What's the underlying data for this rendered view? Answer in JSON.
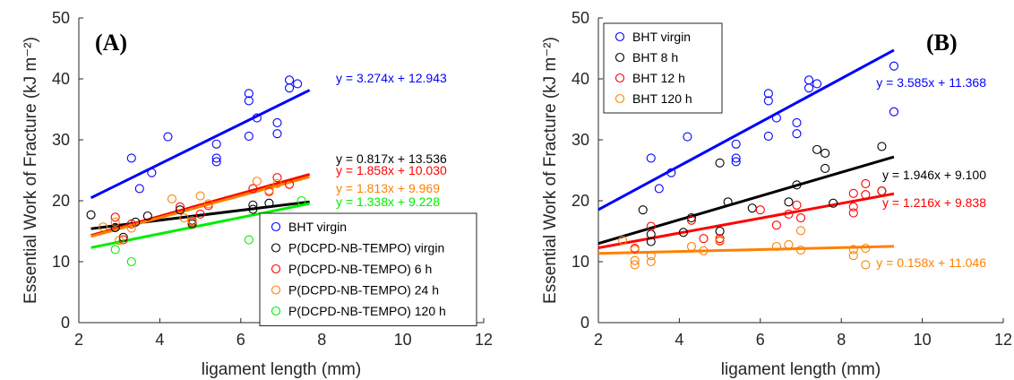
{
  "figure": {
    "colors": {
      "blue": "#0000ff",
      "black": "#000000",
      "red": "#ff0000",
      "orange": "#ff8000",
      "green": "#00ee00",
      "axis": "#262626"
    }
  },
  "chart_data": [
    {
      "type": "scatter",
      "panel_label": "(A)",
      "xlabel": "ligament length (mm)",
      "ylabel": "Essential Work of Fracture (kJ m⁻²)",
      "xlim": [
        2,
        12
      ],
      "ylim": [
        0,
        50
      ],
      "xticks": [
        2,
        4,
        6,
        8,
        10,
        12
      ],
      "yticks": [
        0,
        10,
        20,
        30,
        40,
        50
      ],
      "grid": false,
      "legend_position": "bottom-right",
      "series": [
        {
          "name": "BHT virgin",
          "color": "#0000ff",
          "points": [
            [
              3.3,
              27
            ],
            [
              3.5,
              22
            ],
            [
              3.8,
              24.6
            ],
            [
              4.2,
              30.5
            ],
            [
              5.4,
              29.3
            ],
            [
              5.4,
              27
            ],
            [
              5.4,
              26.4
            ],
            [
              6.2,
              37.6
            ],
            [
              6.2,
              36.4
            ],
            [
              6.2,
              30.6
            ],
            [
              6.4,
              33.6
            ],
            [
              6.9,
              32.8
            ],
            [
              6.9,
              31
            ],
            [
              7.2,
              39.8
            ],
            [
              7.2,
              38.5
            ],
            [
              7.4,
              39.2
            ]
          ],
          "fit": {
            "slope": 3.274,
            "intercept": 12.943,
            "x_range": [
              2.3,
              7.7
            ]
          },
          "equation": "y = 3.274x + 12.943"
        },
        {
          "name": "P(DCPD-NB-TEMPO) virgin",
          "color": "#000000",
          "points": [
            [
              2.3,
              17.7
            ],
            [
              2.9,
              15.6
            ],
            [
              3.1,
              14
            ],
            [
              3.4,
              16.5
            ],
            [
              3.7,
              17.5
            ],
            [
              4.5,
              18.5
            ],
            [
              4.8,
              16.2
            ],
            [
              4.8,
              16.8
            ],
            [
              6.3,
              19.3
            ],
            [
              6.3,
              18.6
            ],
            [
              6.7,
              19.6
            ]
          ],
          "fit": {
            "slope": 0.817,
            "intercept": 13.536,
            "x_range": [
              2.3,
              7.7
            ]
          },
          "equation": "y = 0.817x + 13.536"
        },
        {
          "name": "P(DCPD-NB-TEMPO) 6 h",
          "color": "#ff0000",
          "points": [
            [
              2.9,
              17.3
            ],
            [
              3.1,
              13.6
            ],
            [
              3.3,
              16.2
            ],
            [
              4.5,
              19
            ],
            [
              4.8,
              16.5
            ],
            [
              5,
              17.8
            ],
            [
              5.2,
              19.2
            ],
            [
              6.3,
              22
            ],
            [
              6.7,
              21.5
            ],
            [
              6.9,
              23.8
            ],
            [
              7.2,
              22.7
            ]
          ],
          "fit": {
            "slope": 1.858,
            "intercept": 10.03,
            "x_range": [
              2.3,
              7.7
            ]
          },
          "equation": "y = 1.858x + 10.030"
        },
        {
          "name": "P(DCPD-NB-TEMPO) 24 h",
          "color": "#ff8000",
          "points": [
            [
              2.6,
              15.7
            ],
            [
              2.9,
              16.5
            ],
            [
              3,
              13.5
            ],
            [
              3.3,
              15.5
            ],
            [
              4.3,
              20.3
            ],
            [
              4.6,
              17.2
            ],
            [
              4.8,
              16.7
            ],
            [
              5,
              20.8
            ],
            [
              5.2,
              19.5
            ],
            [
              6.4,
              23.2
            ],
            [
              6.7,
              21.7
            ],
            [
              6.9,
              22.8
            ]
          ],
          "fit": {
            "slope": 1.813,
            "intercept": 9.969,
            "x_range": [
              2.3,
              7.7
            ]
          },
          "equation": "y = 1.813x + 9.969"
        },
        {
          "name": "P(DCPD-NB-TEMPO) 120 h",
          "color": "#00ee00",
          "points": [
            [
              2.9,
              12
            ],
            [
              3.3,
              10
            ],
            [
              6.2,
              13.6
            ],
            [
              7.5,
              20
            ]
          ],
          "fit": {
            "slope": 1.338,
            "intercept": 9.228,
            "x_range": [
              2.3,
              7.7
            ]
          },
          "equation": "y = 1.338x + 9.228"
        }
      ]
    },
    {
      "type": "scatter",
      "panel_label": "(B)",
      "xlabel": "ligament length (mm)",
      "ylabel": "Essential Work of Fracture (kJ m⁻²)",
      "xlim": [
        2,
        12
      ],
      "ylim": [
        0,
        50
      ],
      "xticks": [
        2,
        4,
        6,
        8,
        10,
        12
      ],
      "yticks": [
        0,
        10,
        20,
        30,
        40,
        50
      ],
      "grid": false,
      "legend_position": "top-left",
      "series": [
        {
          "name": "BHT virgin",
          "color": "#0000ff",
          "points": [
            [
              3.3,
              27
            ],
            [
              3.5,
              22
            ],
            [
              3.8,
              24.6
            ],
            [
              4.2,
              30.5
            ],
            [
              5.4,
              29.3
            ],
            [
              5.4,
              27
            ],
            [
              5.4,
              26.4
            ],
            [
              6.2,
              37.6
            ],
            [
              6.2,
              36.4
            ],
            [
              6.2,
              30.6
            ],
            [
              6.4,
              33.6
            ],
            [
              6.9,
              32.8
            ],
            [
              6.9,
              31
            ],
            [
              7.2,
              39.8
            ],
            [
              7.2,
              38.5
            ],
            [
              7.4,
              39.2
            ],
            [
              9.3,
              42.1
            ],
            [
              9.3,
              34.6
            ]
          ],
          "fit": {
            "slope": 3.585,
            "intercept": 11.368,
            "x_range": [
              2,
              9.3
            ]
          },
          "equation": "y = 3.585x + 11.368"
        },
        {
          "name": "BHT 8 h",
          "color": "#000000",
          "points": [
            [
              3.1,
              18.5
            ],
            [
              3.3,
              14.5
            ],
            [
              3.3,
              13.3
            ],
            [
              4.1,
              14.8
            ],
            [
              4.3,
              17.2
            ],
            [
              5,
              26.2
            ],
            [
              5,
              15
            ],
            [
              5.2,
              19.8
            ],
            [
              5.8,
              18.8
            ],
            [
              6.7,
              19.8
            ],
            [
              6.9,
              22.6
            ],
            [
              7.4,
              28.4
            ],
            [
              7.6,
              27.8
            ],
            [
              7.6,
              25.3
            ],
            [
              7.8,
              19.6
            ],
            [
              9,
              28.9
            ],
            [
              9,
              21.6
            ]
          ],
          "fit": {
            "slope": 1.946,
            "intercept": 9.1,
            "x_range": [
              2,
              9.3
            ]
          },
          "equation": "y = 1.946x + 9.100"
        },
        {
          "name": "BHT 12 h",
          "color": "#ff0000",
          "points": [
            [
              2.9,
              12.2
            ],
            [
              3.3,
              15.8
            ],
            [
              4.3,
              16.8
            ],
            [
              4.6,
              13.8
            ],
            [
              5,
              13.8
            ],
            [
              5,
              13.4
            ],
            [
              6,
              18.5
            ],
            [
              6.4,
              16
            ],
            [
              6.7,
              17.8
            ],
            [
              6.9,
              19.3
            ],
            [
              7,
              17.2
            ],
            [
              8.3,
              21.2
            ],
            [
              8.3,
              19
            ],
            [
              8.3,
              18
            ],
            [
              8.6,
              22.8
            ],
            [
              8.6,
              21
            ],
            [
              9,
              21.6
            ]
          ],
          "fit": {
            "slope": 1.216,
            "intercept": 9.838,
            "x_range": [
              2,
              9.3
            ]
          },
          "equation": "y = 1.216x + 9.838"
        },
        {
          "name": "BHT 120 h",
          "color": "#ff8000",
          "points": [
            [
              2.6,
              13.5
            ],
            [
              2.9,
              12
            ],
            [
              2.9,
              10.2
            ],
            [
              2.9,
              9.5
            ],
            [
              3.3,
              11
            ],
            [
              3.3,
              10
            ],
            [
              4.3,
              12.5
            ],
            [
              4.6,
              11.8
            ],
            [
              5,
              13.5
            ],
            [
              6.4,
              12.5
            ],
            [
              6.7,
              12.8
            ],
            [
              7,
              15.1
            ],
            [
              7,
              11.9
            ],
            [
              8.3,
              12
            ],
            [
              8.3,
              11
            ],
            [
              8.6,
              12.2
            ],
            [
              8.6,
              9.5
            ]
          ],
          "fit": {
            "slope": 0.158,
            "intercept": 11.046,
            "x_range": [
              2,
              9.3
            ]
          },
          "equation": "y = 0.158x + 11.046"
        }
      ]
    }
  ]
}
